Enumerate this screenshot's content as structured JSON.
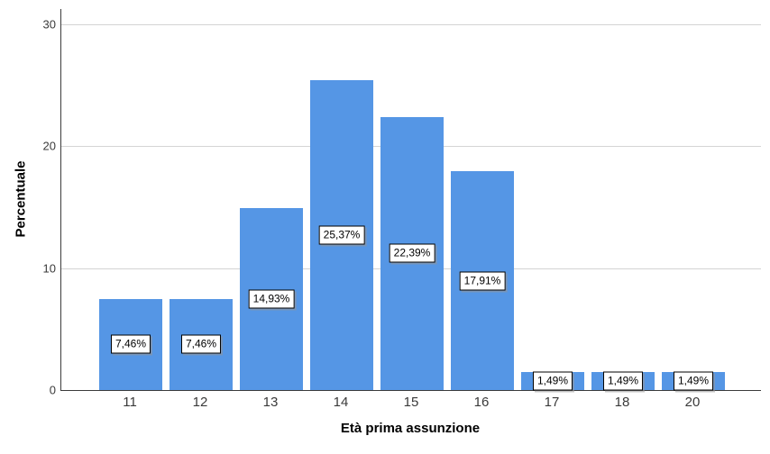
{
  "chart": {
    "y_axis_title": "Percentuale",
    "x_axis_title": "Età prima assunzione",
    "colors": {
      "bar_fill": "#5596e5",
      "gridline": "#d4d4d4",
      "axis_line": "#3c3c3c",
      "tick_text": "#3a3a3a",
      "label_box_border": "#000000",
      "label_box_fill": "#ffffff",
      "background": "#ffffff"
    }
  },
  "chart_data": {
    "type": "bar",
    "title": "",
    "xlabel": "Età prima assunzione",
    "ylabel": "Percentuale",
    "categories": [
      "11",
      "12",
      "13",
      "14",
      "15",
      "16",
      "17",
      "18",
      "20"
    ],
    "values": [
      7.46,
      7.46,
      14.93,
      25.37,
      22.39,
      17.91,
      1.49,
      1.49,
      1.49
    ],
    "bar_labels": [
      "7,46%",
      "7,46%",
      "14,93%",
      "25,37%",
      "22,39%",
      "17,91%",
      "1,49%",
      "1,49%",
      "1,49%"
    ],
    "ylim": [
      0,
      30
    ],
    "yticks": [
      0,
      10,
      20,
      30
    ],
    "grid": "horizontal",
    "legend": "none"
  }
}
